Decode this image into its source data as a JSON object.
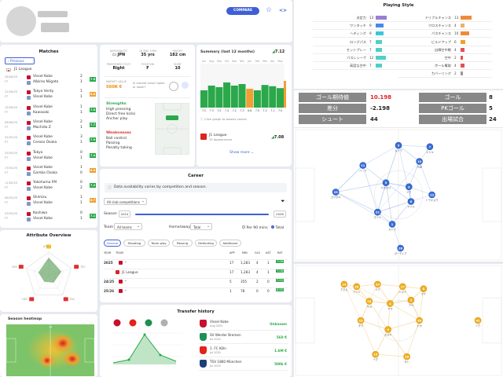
{
  "header": {
    "compare_label": "COMPARE"
  },
  "matches": {
    "title": "Matches",
    "prev_label": "Previous",
    "league": "J1 League",
    "rows": [
      {
        "date": "26/06/25",
        "a": "Vissel Kobe",
        "b": "Albirex Niigata",
        "sa": "2",
        "sb": "1",
        "rating": "7.5",
        "color": "#2aa84a"
      },
      {
        "date": "21/06/25",
        "a": "Tokyo Verdy",
        "b": "Vissel Kobe",
        "sa": "1",
        "sb": "1",
        "rating": "6.8",
        "color": "#f0a030"
      },
      {
        "date": "15/06/25",
        "a": "Vissel Kobe",
        "b": "Kawasaki",
        "sa": "1",
        "sb": "1",
        "rating": "7.0",
        "color": "#2aa84a"
      },
      {
        "date": "08/06/25",
        "a": "Vissel Kobe",
        "b": "Machida Z",
        "sa": "2",
        "sb": "1",
        "rating": "7.7",
        "color": "#2aa84a"
      },
      {
        "date": "31/05/25",
        "a": "Vissel Kobe",
        "b": "Cerezo Osaka",
        "sa": "3",
        "sb": "1",
        "rating": "7.9",
        "color": "#2aa84a"
      },
      {
        "date": "25/05/25",
        "a": "Tokyo",
        "b": "Vissel Kobe",
        "sa": "0",
        "sb": "1",
        "rating": "7.4",
        "color": "#2aa84a"
      },
      {
        "date": "17/05/25",
        "a": "Vissel Kobe",
        "b": "Gamba Osaka",
        "sa": "1",
        "sb": "0",
        "rating": "6.9",
        "color": "#f0a030"
      },
      {
        "date": "11/05/25",
        "a": "Yokohama FM",
        "b": "Vissel Kobe",
        "sa": "0",
        "sb": "2",
        "rating": "7.2",
        "color": "#2aa84a"
      },
      {
        "date": "06/05/25",
        "a": "Shimizu",
        "b": "Vissel Kobe",
        "sa": "1",
        "sb": "1",
        "rating": "6.7",
        "color": "#f0a030"
      },
      {
        "date": "03/05/25",
        "a": "Kashiwa",
        "b": "Vissel Kobe",
        "sa": "0",
        "sb": "1",
        "rating": "7.1",
        "color": "#2aa84a"
      }
    ]
  },
  "profile": {
    "nationality_label": "NATIONALITY",
    "nationality": "JPN",
    "age_label": "35 yrs",
    "height_label": "HEIGHT",
    "height": "182 cm",
    "dob_label": "18 MAY 1990",
    "foot_label": "PREFERRED FOOT",
    "foot": "Right",
    "position_label": "POSITION",
    "position": "F",
    "shirt_label": "SHIRT",
    "shirt": "10",
    "value_label": "MARKET VALUE",
    "value": "560K €",
    "ask_label": "In market value higher or lower?",
    "strengths_title": "Strengths",
    "strengths": [
      "High pressing",
      "Direct free kicks",
      "Anchor play"
    ],
    "weaknesses_title": "Weaknesses",
    "weaknesses": [
      "Ball control",
      "Passing",
      "Penalty taking"
    ]
  },
  "summary": {
    "title": "Summary (last 12 months)",
    "rating": "7.12",
    "months": [
      "Jun",
      "Aug",
      "Sep",
      "Oct",
      "Nov",
      "Dec",
      "Jan",
      "Feb",
      "Mar",
      "Apr",
      "May"
    ],
    "bars": [
      0.55,
      0.7,
      0.65,
      0.8,
      0.7,
      0.75,
      0.6,
      0.55,
      0.72,
      0.68,
      0.62
    ],
    "bar_colors": [
      "#2aa84a",
      "#2aa84a",
      "#2aa84a",
      "#2aa84a",
      "#2aa84a",
      "#2aa84a",
      "#f0a030",
      "#2aa84a",
      "#2aa84a",
      "#2aa84a",
      "#2aa84a"
    ],
    "bar_labels": [
      "7.2",
      "7.3",
      "7.0",
      "7.4",
      "7.2",
      "7.3",
      "6.8",
      "7.0",
      "7.2",
      "7.1",
      "7.0"
    ],
    "tip": "Click graph to assess values",
    "team": "J1 League",
    "team_sub": "33 Appearances",
    "team_rating": "7.08",
    "show_more": "Show more"
  },
  "career": {
    "title": "Career",
    "info": "Data availability varies by competition and season.",
    "competitions": "All club competitions",
    "season_label": "Season",
    "season_from": "2014",
    "season_to": "2026",
    "team_label": "Team",
    "team_value": "All teams",
    "homeaway_label": "Home/away",
    "homeaway_value": "Total",
    "per90": "Per 90 mins",
    "total": "Total",
    "tabs": [
      "General",
      "Shooting",
      "Team play",
      "Passing",
      "Defending",
      "Additional"
    ],
    "cols": [
      "YEAR",
      "TEAM",
      "APP",
      "MIN",
      "GLS",
      "AST",
      "RAT"
    ],
    "rows": [
      {
        "year": "2025",
        "app": "17",
        "min": "1,283",
        "g": "4",
        "a": "1",
        "rat": "7.08"
      },
      {
        "year": "J1 League",
        "app": "17",
        "min": "1,283",
        "g": "4",
        "a": "1",
        "rat": "7.08"
      },
      {
        "year": "24/25",
        "app": "5",
        "min": "355",
        "g": "2",
        "a": "0",
        "rat": "7.02"
      },
      {
        "year": "25/26",
        "app": "1",
        "min": "78",
        "g": "0",
        "a": "0",
        "rat": "6.90"
      }
    ]
  },
  "attributes": {
    "title": "Attribute Overview",
    "labels": [
      "ATT",
      "TEC",
      "TAC",
      "DEF",
      "CRE"
    ],
    "values": [
      0.75,
      0.55,
      0.35,
      0.3,
      0.45
    ]
  },
  "heatmap": {
    "title": "Season heatmap"
  },
  "transfer": {
    "title": "Transfer history",
    "rows": [
      {
        "team": "Vissel Kobe",
        "date": "Aug 2025",
        "fee": "Unknown",
        "fee_color": "#2aa84a",
        "crest": "#c8102e"
      },
      {
        "team": "SV Werder Bremen",
        "date": "Jul 2024",
        "fee": "560 €",
        "fee_color": "#2aa84a",
        "crest": "#1d9053"
      },
      {
        "team": "1. FC Köln",
        "date": "Jul 2020",
        "fee": "1.6M €",
        "fee_color": "#2aa84a",
        "crest": "#e32219"
      },
      {
        "team": "TSV 1860 München",
        "date": "Jul 2015",
        "fee": "500k €",
        "fee_color": "#2aa84a",
        "crest": "#1e3d7a"
      }
    ]
  },
  "playing_style": {
    "title": "Playing Style",
    "left": [
      {
        "label": "決定力",
        "value": "13",
        "color": "#9a7fd1",
        "frac": 0.8
      },
      {
        "label": "ワンタッチ",
        "value": "9",
        "color": "#4a88e6",
        "frac": 0.55
      },
      {
        "label": "ヘディング",
        "value": "9",
        "color": "#3cc7d8",
        "frac": 0.55
      },
      {
        "label": "ロングパス",
        "value": "7",
        "color": "#4fd0c8",
        "frac": 0.42
      },
      {
        "label": "セットプレー",
        "value": "7",
        "color": "#4fd0c8",
        "frac": 0.42
      },
      {
        "label": "パスレシーブ",
        "value": "12",
        "color": "#4fd0c8",
        "frac": 0.72
      },
      {
        "label": "高度な空中",
        "value": "7",
        "color": "#4fd0c8",
        "frac": 0.42
      }
    ],
    "right": [
      {
        "label": "ドリブルチャンス",
        "value": "13",
        "color": "#f08a3a",
        "frac": 0.8
      },
      {
        "label": "クロスチャンス",
        "value": "4",
        "color": "#f0b070",
        "frac": 0.25
      },
      {
        "label": "パスチャンス",
        "value": "10",
        "color": "#f08a3a",
        "frac": 0.6
      },
      {
        "label": "ビルドアップ",
        "value": "6",
        "color": "#f0a030",
        "frac": 0.35
      },
      {
        "label": "自陣空中戦",
        "value": "4",
        "color": "#e65050",
        "frac": 0.25
      },
      {
        "label": "空中",
        "value": "2",
        "color": "#e65050",
        "frac": 0.12
      },
      {
        "label": "ボール奪取",
        "value": "4",
        "color": "#e65050",
        "frac": 0.25
      },
      {
        "label": "カバーリング",
        "value": "2",
        "color": "#999999",
        "frac": 0.12
      }
    ]
  },
  "key_values": [
    {
      "label": "ゴール期待値",
      "value": "10.198",
      "value_color": "#e02020"
    },
    {
      "label": "ゴール",
      "value": "8",
      "value_color": "#222"
    },
    {
      "label": "差分",
      "value": "-2.198",
      "value_color": "#222"
    },
    {
      "label": "PKゴール",
      "value": "5",
      "value_color": "#222"
    },
    {
      "label": "シュート",
      "value": "44",
      "value_color": "#222"
    },
    {
      "label": "出場試合",
      "value": "24",
      "value_color": "#222"
    }
  ],
  "networks": {
    "blue": {
      "nodes": [
        {
          "n": "9",
          "name": "ムトウ"
        },
        {
          "n": "7",
          "name": "エリキ"
        },
        {
          "n": "10",
          "name": "大迫"
        },
        {
          "n": "11",
          "name": "ハーフ"
        },
        {
          "n": "5",
          "name": "ヤマカワ"
        },
        {
          "n": "3",
          "name": "トウ"
        },
        {
          "n": "25",
          "name": "クワサキ"
        },
        {
          "n": "13",
          "name": "トウキョウ"
        },
        {
          "n": "22",
          "name": "モトイ"
        },
        {
          "n": "6",
          "name": "アイル"
        },
        {
          "n": "1",
          "name": "カトウ"
        },
        {
          "n": "28",
          "name": "ガーディア"
        }
      ]
    },
    "orange": {
      "nodes": [
        {
          "n": "14",
          "name": "アネム"
        },
        {
          "n": "26",
          "name": "クツミ"
        },
        {
          "n": "20",
          "name": "ドウ"
        },
        {
          "n": "17",
          "name": "ハマド"
        },
        {
          "n": "8",
          "name": "マナ"
        },
        {
          "n": "18",
          "name": "キヨ"
        },
        {
          "n": "4",
          "name": "ヤマ"
        },
        {
          "n": "2",
          "name": "アヤ"
        },
        {
          "n": "23",
          "name": "タク"
        },
        {
          "n": "9",
          "name": "スズキ"
        },
        {
          "n": "30",
          "name": "ナカ"
        },
        {
          "n": "41",
          "name": "ソウ"
        },
        {
          "n": "15",
          "name": "イグ"
        },
        {
          "n": "16",
          "name": "サト"
        }
      ]
    }
  }
}
